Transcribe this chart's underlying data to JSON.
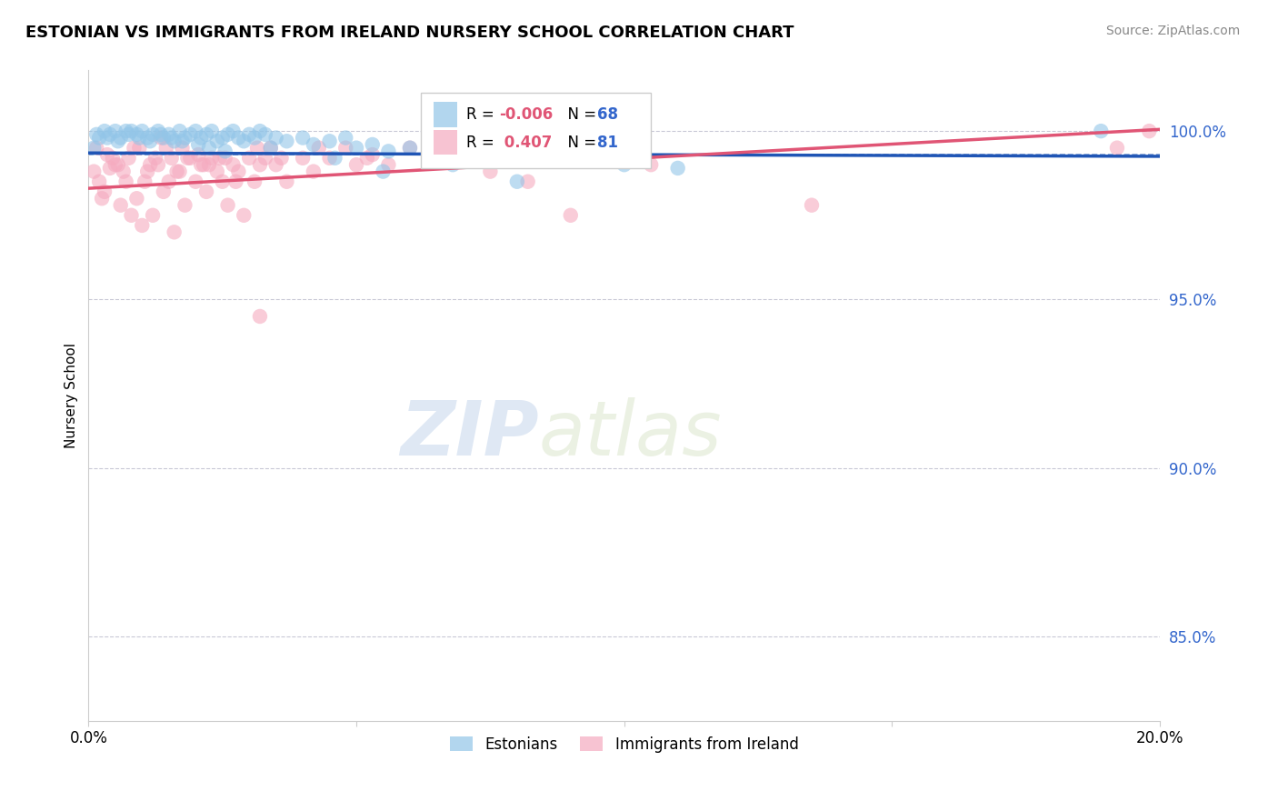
{
  "title": "ESTONIAN VS IMMIGRANTS FROM IRELAND NURSERY SCHOOL CORRELATION CHART",
  "source": "Source: ZipAtlas.com",
  "ylabel": "Nursery School",
  "watermark": "ZIPatlas",
  "xmin": 0.0,
  "xmax": 20.0,
  "ymin": 82.5,
  "ymax": 101.8,
  "yticks": [
    85.0,
    90.0,
    95.0,
    100.0
  ],
  "ytick_labels": [
    "85.0%",
    "90.0%",
    "95.0%",
    "100.0%"
  ],
  "blue_color": "#92C5E8",
  "pink_color": "#F5AABF",
  "blue_line_color": "#1F55B5",
  "pink_line_color": "#E05575",
  "legend_blue_label": "Estonians",
  "legend_pink_label": "Immigrants from Ireland",
  "blue_R": -0.006,
  "blue_N": 68,
  "pink_R": 0.407,
  "pink_N": 81,
  "blue_line_y0": 99.35,
  "blue_line_y1": 99.25,
  "pink_line_y0": 98.3,
  "pink_line_y1": 100.05,
  "mean_line_y": 99.3,
  "blue_scatter_x": [
    0.1,
    0.2,
    0.3,
    0.4,
    0.5,
    0.6,
    0.7,
    0.8,
    0.9,
    1.0,
    1.1,
    1.2,
    1.3,
    1.4,
    1.5,
    1.6,
    1.7,
    1.8,
    1.9,
    2.0,
    2.1,
    2.2,
    2.3,
    2.4,
    2.5,
    2.6,
    2.7,
    2.8,
    2.9,
    3.0,
    3.1,
    3.2,
    3.3,
    3.5,
    3.7,
    4.0,
    4.2,
    4.5,
    4.8,
    5.0,
    5.3,
    5.6,
    6.0,
    6.5,
    7.0,
    7.8,
    8.5,
    9.2,
    10.0,
    11.0,
    0.15,
    0.35,
    0.55,
    0.75,
    0.95,
    1.15,
    1.35,
    1.55,
    1.75,
    2.05,
    2.25,
    2.55,
    3.4,
    4.6,
    5.5,
    6.8,
    8.0,
    18.9
  ],
  "blue_scatter_y": [
    99.5,
    99.8,
    100.0,
    99.9,
    100.0,
    99.8,
    100.0,
    100.0,
    99.9,
    100.0,
    99.8,
    99.9,
    100.0,
    99.8,
    99.9,
    99.7,
    100.0,
    99.8,
    99.9,
    100.0,
    99.8,
    99.9,
    100.0,
    99.7,
    99.8,
    99.9,
    100.0,
    99.8,
    99.7,
    99.9,
    99.8,
    100.0,
    99.9,
    99.8,
    99.7,
    99.8,
    99.6,
    99.7,
    99.8,
    99.5,
    99.6,
    99.4,
    99.5,
    99.3,
    99.4,
    99.2,
    99.3,
    99.1,
    99.0,
    98.9,
    99.9,
    99.8,
    99.7,
    99.9,
    99.8,
    99.7,
    99.9,
    99.8,
    99.7,
    99.6,
    99.5,
    99.4,
    99.5,
    99.2,
    98.8,
    99.0,
    98.5,
    100.0
  ],
  "pink_scatter_x": [
    0.1,
    0.2,
    0.3,
    0.4,
    0.5,
    0.6,
    0.7,
    0.8,
    0.9,
    1.0,
    1.1,
    1.2,
    1.3,
    1.4,
    1.5,
    1.6,
    1.7,
    1.8,
    1.9,
    2.0,
    2.1,
    2.2,
    2.3,
    2.4,
    2.5,
    2.6,
    2.7,
    2.8,
    2.9,
    3.0,
    3.1,
    3.2,
    3.3,
    3.5,
    3.7,
    4.0,
    4.2,
    4.5,
    4.8,
    5.0,
    5.3,
    5.6,
    6.0,
    0.15,
    0.35,
    0.55,
    0.75,
    0.95,
    1.15,
    1.35,
    1.55,
    1.75,
    2.05,
    2.25,
    2.55,
    3.4,
    0.25,
    0.45,
    0.65,
    0.85,
    1.05,
    1.25,
    1.45,
    1.65,
    1.85,
    2.15,
    2.45,
    2.75,
    3.15,
    3.6,
    4.3,
    5.2,
    6.5,
    7.5,
    3.2,
    8.2,
    9.0,
    10.5,
    13.5,
    19.8,
    19.2
  ],
  "pink_scatter_y": [
    98.8,
    98.5,
    98.2,
    98.9,
    99.0,
    97.8,
    98.5,
    97.5,
    98.0,
    97.2,
    98.8,
    97.5,
    99.0,
    98.2,
    98.5,
    97.0,
    98.8,
    97.8,
    99.2,
    98.5,
    99.0,
    98.2,
    99.2,
    98.8,
    98.5,
    97.8,
    99.0,
    98.8,
    97.5,
    99.2,
    98.5,
    99.0,
    99.2,
    99.0,
    98.5,
    99.2,
    98.8,
    99.2,
    99.5,
    99.0,
    99.3,
    99.0,
    99.5,
    99.5,
    99.3,
    99.0,
    99.2,
    99.5,
    99.0,
    99.8,
    99.2,
    99.5,
    99.3,
    99.0,
    99.2,
    99.5,
    98.0,
    99.2,
    98.8,
    99.5,
    98.5,
    99.2,
    99.5,
    98.8,
    99.2,
    99.0,
    99.2,
    98.5,
    99.5,
    99.2,
    99.5,
    99.2,
    99.8,
    98.8,
    94.5,
    98.5,
    97.5,
    99.0,
    97.8,
    100.0,
    99.5
  ]
}
